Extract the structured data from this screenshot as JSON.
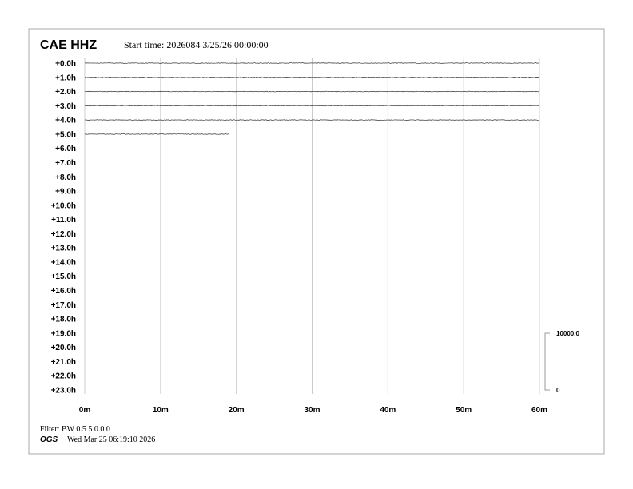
{
  "header": {
    "station": "CAE HHZ",
    "start_time": "Start time: 2026084  3/25/26 00:00:00"
  },
  "footer": {
    "filter": "Filter: BW 0.5 5 0.0 0",
    "org": "OGS",
    "timestamp": "Wed Mar 25 06:19:10 2026"
  },
  "chart_data": {
    "type": "line",
    "row_labels": [
      "+0.0h",
      "+1.0h",
      "+2.0h",
      "+3.0h",
      "+4.0h",
      "+5.0h",
      "+6.0h",
      "+7.0h",
      "+8.0h",
      "+9.0h",
      "+10.0h",
      "+11.0h",
      "+12.0h",
      "+13.0h",
      "+14.0h",
      "+15.0h",
      "+16.0h",
      "+17.0h",
      "+18.0h",
      "+19.0h",
      "+20.0h",
      "+21.0h",
      "+22.0h",
      "+23.0h"
    ],
    "x_ticks": [
      "0m",
      "10m",
      "20m",
      "30m",
      "40m",
      "50m",
      "60m"
    ],
    "xlim": [
      0,
      60
    ],
    "grid": true,
    "trace_color": "#333333",
    "grid_color": "#cccccc",
    "traces": [
      {
        "row": 0,
        "end_minute": 60
      },
      {
        "row": 1,
        "end_minute": 60
      },
      {
        "row": 2,
        "end_minute": 60
      },
      {
        "row": 3,
        "end_minute": 60
      },
      {
        "row": 4,
        "end_minute": 60
      },
      {
        "row": 5,
        "end_minute": 19
      }
    ],
    "scale": {
      "top_label": "10000.0",
      "bottom_label": "0"
    }
  }
}
